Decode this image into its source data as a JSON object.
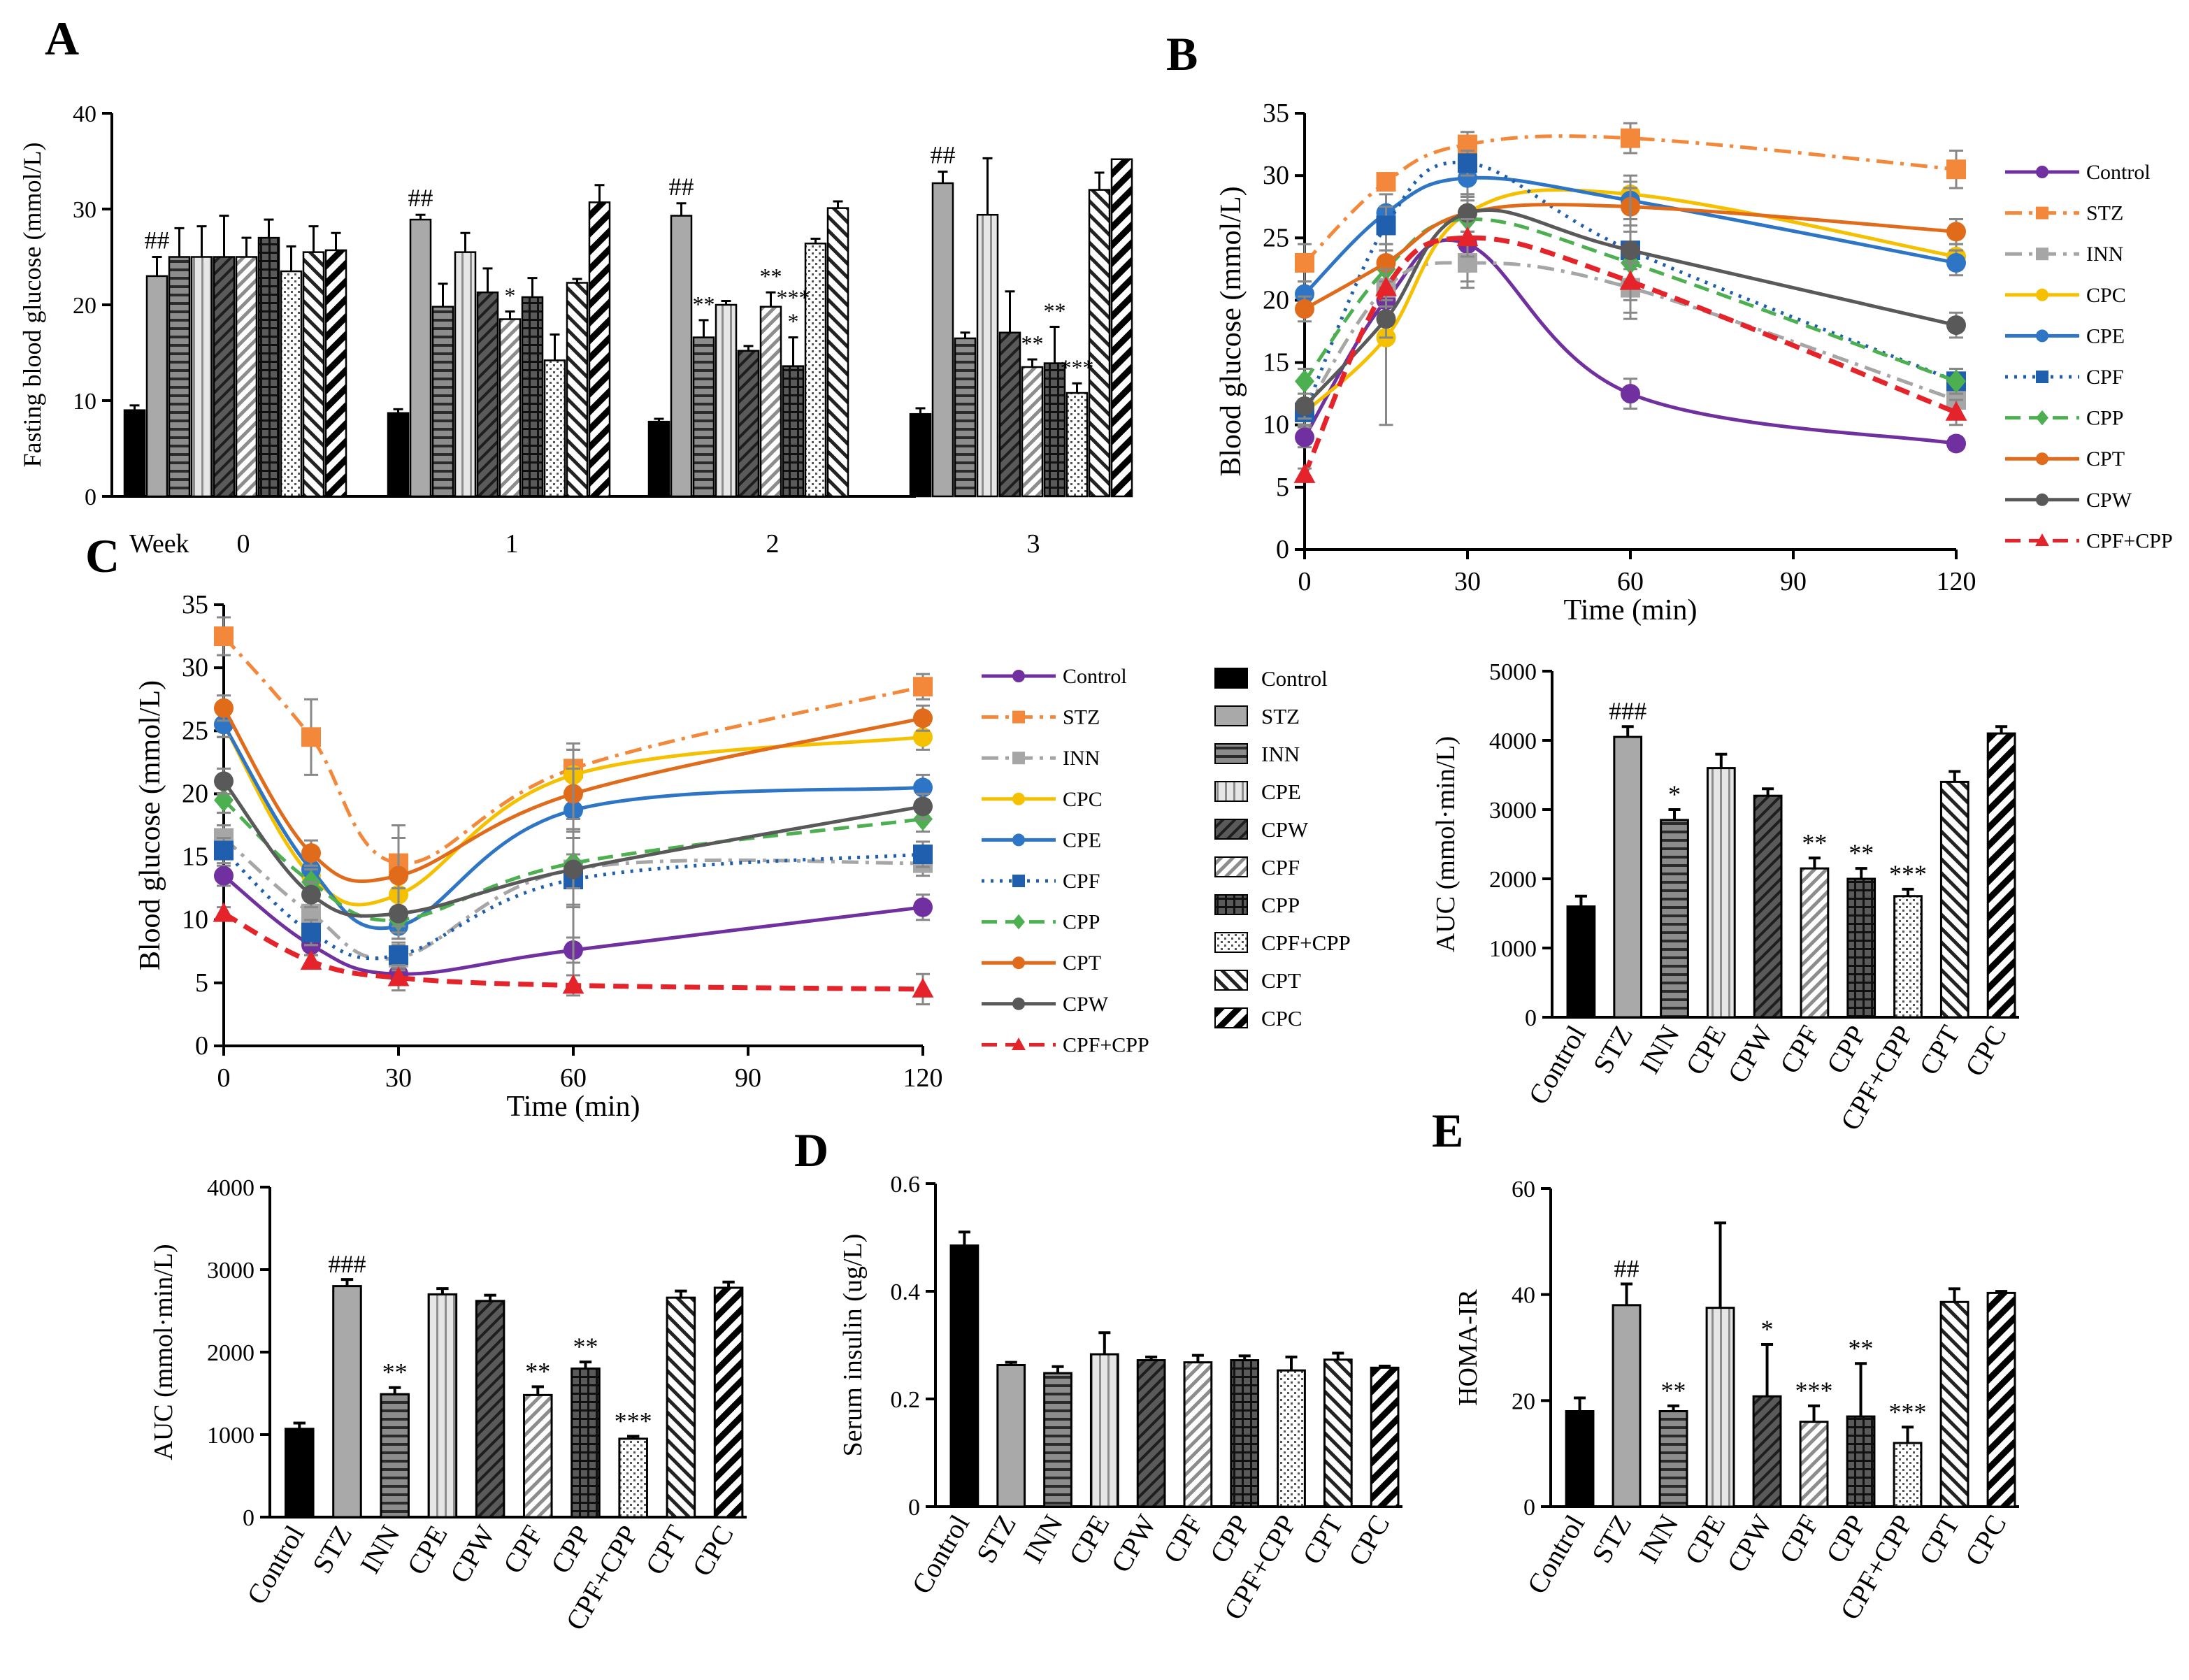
{
  "figure": {
    "panel_labels": [
      "A",
      "B",
      "C",
      "D",
      "E"
    ],
    "colors": {
      "Control": "#7030A0",
      "STZ": "#F4883A",
      "INN": "#A6A6A6",
      "CPC": "#F5C000",
      "CPE": "#2E75C6",
      "CPF": "#1F5FAE",
      "CPP": "#4CAF50",
      "CPT": "#E06B1A",
      "CPW": "#595959",
      "CPF+CPP": "#E5232A"
    },
    "line_styles": {
      "Control": {
        "marker": "circle",
        "dash": "none"
      },
      "STZ": {
        "marker": "square",
        "dash": "dashdot"
      },
      "INN": {
        "marker": "square",
        "dash": "dashdot"
      },
      "CPC": {
        "marker": "circle",
        "dash": "none"
      },
      "CPE": {
        "marker": "circle",
        "dash": "none"
      },
      "CPF": {
        "marker": "square",
        "dash": "dot"
      },
      "CPP": {
        "marker": "diamond",
        "dash": "dash"
      },
      "CPT": {
        "marker": "circle",
        "dash": "none"
      },
      "CPW": {
        "marker": "circle",
        "dash": "none"
      },
      "CPF+CPP": {
        "marker": "triangle",
        "dash": "dash"
      }
    },
    "bar_patterns": {
      "Control": "solid",
      "STZ": "lightgray",
      "INN": "hlines",
      "CPE": "vlines",
      "CPW": "diagdark",
      "CPF": "diaglight",
      "CPP": "grid",
      "CPF+CPP": "dots",
      "CPT": "backdiag",
      "CPC": "thickdiag"
    }
  },
  "chart_data": [
    {
      "id": "A",
      "type": "bar",
      "title": "",
      "ylabel": "Fasting blood glucose (mmol/L)",
      "xlabel": "",
      "ylim": [
        0,
        40
      ],
      "yticks": [
        0,
        10,
        20,
        30,
        40
      ],
      "xprefix": "Week",
      "categories": [
        "0",
        "1",
        "2",
        "3"
      ],
      "series": [
        {
          "name": "Control",
          "values": [
            9,
            8.7,
            7.8,
            8.6
          ],
          "errors": [
            0.5,
            0.4,
            0.3,
            0.6
          ]
        },
        {
          "name": "STZ",
          "values": [
            23,
            28.9,
            29.3,
            32.7
          ],
          "errors": [
            2,
            0.5,
            1.3,
            1.2
          ]
        },
        {
          "name": "INN",
          "values": [
            25,
            19.8,
            16.6,
            16.5
          ],
          "errors": [
            3,
            2.4,
            1.8,
            0.6
          ]
        },
        {
          "name": "CPE",
          "values": [
            25,
            25.5,
            20,
            29.4
          ],
          "errors": [
            3.2,
            2,
            0.4,
            5.9
          ]
        },
        {
          "name": "CPW",
          "values": [
            25,
            21.3,
            15.2,
            17.1
          ],
          "errors": [
            4.3,
            2.5,
            0.5,
            4.3
          ]
        },
        {
          "name": "CPF",
          "values": [
            25,
            18.5,
            19.8,
            13.5
          ],
          "errors": [
            2,
            0.8,
            1.5,
            0.8
          ]
        },
        {
          "name": "CPP",
          "values": [
            27,
            20.8,
            13.6,
            13.9
          ],
          "errors": [
            1.9,
            2,
            3,
            3.8
          ]
        },
        {
          "name": "CPF+CPP",
          "values": [
            23.5,
            14.2,
            26.4,
            10.8
          ],
          "errors": [
            2.6,
            2.7,
            0.5,
            1
          ]
        },
        {
          "name": "CPT",
          "values": [
            25.5,
            22.3,
            30.1,
            32
          ],
          "errors": [
            2.7,
            0.4,
            0.7,
            1.8
          ]
        },
        {
          "name": "CPC",
          "values": [
            25.7,
            30.7,
            0,
            35.2
          ],
          "errors": [
            1.8,
            1.8,
            0,
            0
          ]
        }
      ],
      "annotations": [
        {
          "category": "0",
          "series": "STZ",
          "text": "##"
        },
        {
          "category": "1",
          "series": "STZ",
          "text": "##"
        },
        {
          "category": "1",
          "series": "CPF",
          "text": "*"
        },
        {
          "category": "2",
          "series": "STZ",
          "text": "##"
        },
        {
          "category": "2",
          "series": "INN",
          "text": "**"
        },
        {
          "category": "2",
          "series": "CPF",
          "text": "**"
        },
        {
          "category": "2",
          "series": "CPP",
          "text": "*"
        },
        {
          "category": "2",
          "series": "CPP",
          "text": "***"
        },
        {
          "category": "3",
          "series": "STZ",
          "text": "##"
        },
        {
          "category": "3",
          "series": "CPF",
          "text": "**"
        },
        {
          "category": "3",
          "series": "CPP",
          "text": "**"
        },
        {
          "category": "3",
          "series": "CPF+CPP",
          "text": "***"
        }
      ]
    },
    {
      "id": "B",
      "type": "line",
      "title": "",
      "xlabel": "Time (min)",
      "ylabel": "Blood glucose (mmol/L)",
      "xlim": [
        0,
        120
      ],
      "ylim": [
        0,
        35
      ],
      "xticks": [
        0,
        30,
        60,
        90,
        120
      ],
      "yticks": [
        0,
        5,
        10,
        15,
        20,
        25,
        30,
        35
      ],
      "x": [
        0,
        15,
        30,
        60,
        120
      ],
      "series": [
        {
          "name": "Control",
          "values": [
            9,
            20,
            24.5,
            12.5,
            8.5
          ],
          "errors": [
            0.8,
            1,
            3,
            1.2,
            0.5
          ]
        },
        {
          "name": "STZ",
          "values": [
            23,
            29.5,
            32.5,
            33,
            30.5
          ],
          "errors": [
            1.5,
            0.5,
            1,
            1.2,
            1.5
          ]
        },
        {
          "name": "INN",
          "values": [
            11,
            21,
            23,
            21,
            12
          ],
          "errors": [
            1,
            2,
            2,
            2.5,
            1.5
          ]
        },
        {
          "name": "CPC",
          "values": [
            11,
            17,
            27,
            28.5,
            23.5
          ],
          "errors": [
            1,
            7,
            1.5,
            1.5,
            1
          ]
        },
        {
          "name": "CPE",
          "values": [
            20.5,
            27,
            29.8,
            28,
            23
          ],
          "errors": [
            1,
            1.5,
            1.5,
            1.5,
            1
          ]
        },
        {
          "name": "CPF",
          "values": [
            11,
            26,
            31,
            24,
            13.5
          ],
          "errors": [
            1,
            1.5,
            1,
            1.5,
            1
          ]
        },
        {
          "name": "CPP",
          "values": [
            13.5,
            22.5,
            26.5,
            23,
            13.5
          ],
          "errors": [
            1,
            1.5,
            1.5,
            1.5,
            1
          ]
        },
        {
          "name": "CPT",
          "values": [
            19.3,
            23,
            27,
            27.5,
            25.5
          ],
          "errors": [
            1,
            1.5,
            1.5,
            1.5,
            1
          ]
        },
        {
          "name": "CPW",
          "values": [
            11.5,
            18.5,
            27,
            24,
            18
          ],
          "errors": [
            1,
            1.5,
            1.5,
            5,
            1
          ]
        },
        {
          "name": "CPF+CPP",
          "values": [
            6,
            21,
            25,
            21.5,
            11
          ],
          "errors": [
            0.5,
            1.5,
            1.5,
            1.5,
            1
          ]
        }
      ]
    },
    {
      "id": "C",
      "type": "line",
      "title": "",
      "xlabel": "Time (min)",
      "ylabel": "Blood glucose (mmol/L)",
      "xlim": [
        0,
        120
      ],
      "ylim": [
        0,
        35
      ],
      "xticks": [
        0,
        30,
        60,
        90,
        120
      ],
      "yticks": [
        0,
        5,
        10,
        15,
        20,
        25,
        30,
        35
      ],
      "x": [
        0,
        15,
        30,
        60,
        120
      ],
      "series": [
        {
          "name": "Control",
          "values": [
            13.5,
            8,
            5.7,
            7.6,
            11
          ],
          "errors": [
            0.8,
            0.8,
            0.5,
            1,
            1
          ]
        },
        {
          "name": "STZ",
          "values": [
            32.5,
            24.5,
            14.5,
            22,
            28.5
          ],
          "errors": [
            1.5,
            3,
            2,
            2,
            1
          ]
        },
        {
          "name": "INN",
          "values": [
            16.5,
            10.5,
            7,
            14,
            14.5
          ],
          "errors": [
            1,
            2.5,
            1,
            3,
            1
          ]
        },
        {
          "name": "CPC",
          "values": [
            25.5,
            13.5,
            12,
            21.5,
            24.5
          ],
          "errors": [
            1,
            1,
            1.5,
            2,
            1
          ]
        },
        {
          "name": "CPE",
          "values": [
            25.5,
            14,
            9.5,
            18.7,
            20.5
          ],
          "errors": [
            1,
            1,
            1,
            1.5,
            1
          ]
        },
        {
          "name": "CPF",
          "values": [
            15.5,
            9,
            7.2,
            13.2,
            15.2
          ],
          "errors": [
            1,
            1,
            1,
            2,
            1
          ]
        },
        {
          "name": "CPP",
          "values": [
            19.5,
            13,
            10,
            14.5,
            18
          ],
          "errors": [
            1,
            1,
            1,
            2,
            1
          ]
        },
        {
          "name": "CPT",
          "values": [
            26.8,
            15.3,
            13.5,
            20,
            26
          ],
          "errors": [
            1,
            1,
            4,
            2,
            1
          ]
        },
        {
          "name": "CPW",
          "values": [
            21,
            12,
            10.5,
            14,
            19
          ],
          "errors": [
            1,
            1,
            2,
            9.5,
            1
          ]
        },
        {
          "name": "CPF+CPP",
          "values": [
            10.5,
            6.7,
            5.4,
            4.8,
            4.5
          ],
          "errors": [
            0.5,
            0.5,
            1,
            0.8,
            1.2
          ]
        }
      ]
    },
    {
      "id": "AUC_B",
      "type": "bar",
      "title": "",
      "xlabel": "",
      "ylabel": "AUC (mmol·min/L)",
      "ylim": [
        0,
        5000
      ],
      "yticks": [
        0,
        1000,
        2000,
        3000,
        4000,
        5000
      ],
      "categories": [
        "Control",
        "STZ",
        "INN",
        "CPE",
        "CPW",
        "CPF",
        "CPP",
        "CPF+CPP",
        "CPT",
        "CPC"
      ],
      "values": [
        1600,
        4050,
        2850,
        3600,
        3200,
        2150,
        2000,
        1750,
        3400,
        4100
      ],
      "errors": [
        150,
        150,
        150,
        200,
        100,
        150,
        150,
        100,
        150,
        100
      ],
      "annotations": [
        "",
        "###",
        "*",
        "",
        "",
        "**",
        "**",
        "***",
        "",
        ""
      ]
    },
    {
      "id": "AUC_C",
      "type": "bar",
      "title": "",
      "xlabel": "",
      "ylabel": "AUC (mmol·min/L)",
      "ylim": [
        0,
        4000
      ],
      "yticks": [
        0,
        1000,
        2000,
        3000,
        4000
      ],
      "categories": [
        "Control",
        "STZ",
        "INN",
        "CPE",
        "CPW",
        "CPF",
        "CPP",
        "CPF+CPP",
        "CPT",
        "CPC"
      ],
      "values": [
        1070,
        2800,
        1490,
        2700,
        2620,
        1480,
        1800,
        950,
        2660,
        2780
      ],
      "errors": [
        70,
        80,
        80,
        70,
        70,
        100,
        80,
        30,
        80,
        70
      ],
      "annotations": [
        "",
        "###",
        "**",
        "",
        "",
        "**",
        "**",
        "***",
        "",
        ""
      ]
    },
    {
      "id": "D",
      "type": "bar",
      "title": "",
      "xlabel": "",
      "ylabel": "Serum insulin (ug/L)",
      "ylim": [
        0,
        0.6
      ],
      "yticks": [
        0.0,
        0.2,
        0.4,
        0.6
      ],
      "categories": [
        "Control",
        "STZ",
        "INN",
        "CPE",
        "CPW",
        "CPF",
        "CPP",
        "CPF+CPP",
        "CPT",
        "CPC"
      ],
      "values": [
        0.485,
        0.263,
        0.248,
        0.283,
        0.272,
        0.268,
        0.272,
        0.253,
        0.273,
        0.258
      ],
      "errors": [
        0.025,
        0.005,
        0.012,
        0.04,
        0.006,
        0.013,
        0.008,
        0.025,
        0.012,
        0.003
      ],
      "annotations": [
        "",
        "",
        "",
        "",
        "",
        "",
        "",
        "",
        "",
        ""
      ]
    },
    {
      "id": "E",
      "type": "bar",
      "title": "",
      "xlabel": "",
      "ylabel": "HOMA-IR",
      "ylim": [
        0,
        60
      ],
      "yticks": [
        0,
        20,
        40,
        60
      ],
      "categories": [
        "Control",
        "STZ",
        "INN",
        "CPE",
        "CPW",
        "CPF",
        "CPP",
        "CPF+CPP",
        "CPT",
        "CPC"
      ],
      "values": [
        18,
        38,
        18,
        37.5,
        20.8,
        16,
        17,
        12,
        38.6,
        40.3
      ],
      "errors": [
        2.5,
        4,
        1,
        16,
        9.8,
        3,
        10,
        3,
        2.5,
        0.3
      ],
      "annotations": [
        "",
        "##",
        "**",
        "",
        "*",
        "***",
        "**",
        "***",
        "",
        ""
      ]
    }
  ]
}
